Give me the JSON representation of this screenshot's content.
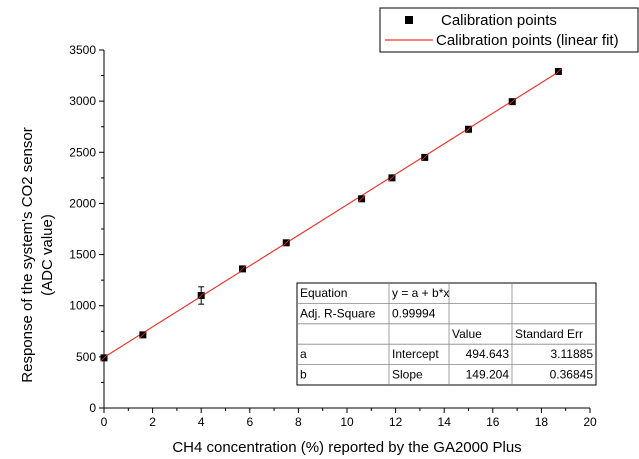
{
  "chart_data": {
    "type": "scatter",
    "title": "",
    "xlabel": "CH4 concentration (%) reported by the GA2000 Plus",
    "ylabel_line1": "Response of the system's CO2 sensor",
    "ylabel_line2": "(ADC value)",
    "xlim": [
      0,
      20
    ],
    "ylim": [
      0,
      3500
    ],
    "xticks": [
      0,
      2,
      4,
      6,
      8,
      10,
      12,
      14,
      16,
      18,
      20
    ],
    "yticks": [
      0,
      500,
      1000,
      1500,
      2000,
      2500,
      3000,
      3500
    ],
    "grid": false,
    "legend_position": "top-right",
    "legend": [
      {
        "label": "Calibration points",
        "marker": "square"
      },
      {
        "label": "Calibration points (linear fit)",
        "marker": "line"
      }
    ],
    "marker_color": "#000000",
    "fit_color": "#e8362f",
    "series": [
      {
        "name": "Calibration points",
        "points": [
          {
            "x": 0.0,
            "y": 490,
            "err": 0
          },
          {
            "x": 1.6,
            "y": 715,
            "err": 0
          },
          {
            "x": 4.0,
            "y": 1100,
            "err": 85
          },
          {
            "x": 5.7,
            "y": 1360,
            "err": 0
          },
          {
            "x": 7.5,
            "y": 1615,
            "err": 0
          },
          {
            "x": 10.6,
            "y": 2045,
            "err": 0
          },
          {
            "x": 11.85,
            "y": 2250,
            "err": 0
          },
          {
            "x": 13.2,
            "y": 2450,
            "err": 0
          },
          {
            "x": 15.0,
            "y": 2725,
            "err": 0
          },
          {
            "x": 16.8,
            "y": 2995,
            "err": 0
          },
          {
            "x": 18.7,
            "y": 3290,
            "err": 0
          }
        ]
      }
    ],
    "fit": {
      "intercept": 494.643,
      "slope": 149.204,
      "x_range": [
        0,
        18.7
      ]
    },
    "table": {
      "rows": [
        [
          "Equation",
          "y = a + b*x",
          "",
          ""
        ],
        [
          "Adj. R-Square",
          "0.99994",
          "",
          ""
        ],
        [
          "",
          "",
          "Value",
          "Standard Err"
        ],
        [
          "a",
          "Intercept",
          "494.643",
          "3.11885"
        ],
        [
          "b",
          "Slope",
          "149.204",
          "0.36845"
        ]
      ]
    }
  }
}
